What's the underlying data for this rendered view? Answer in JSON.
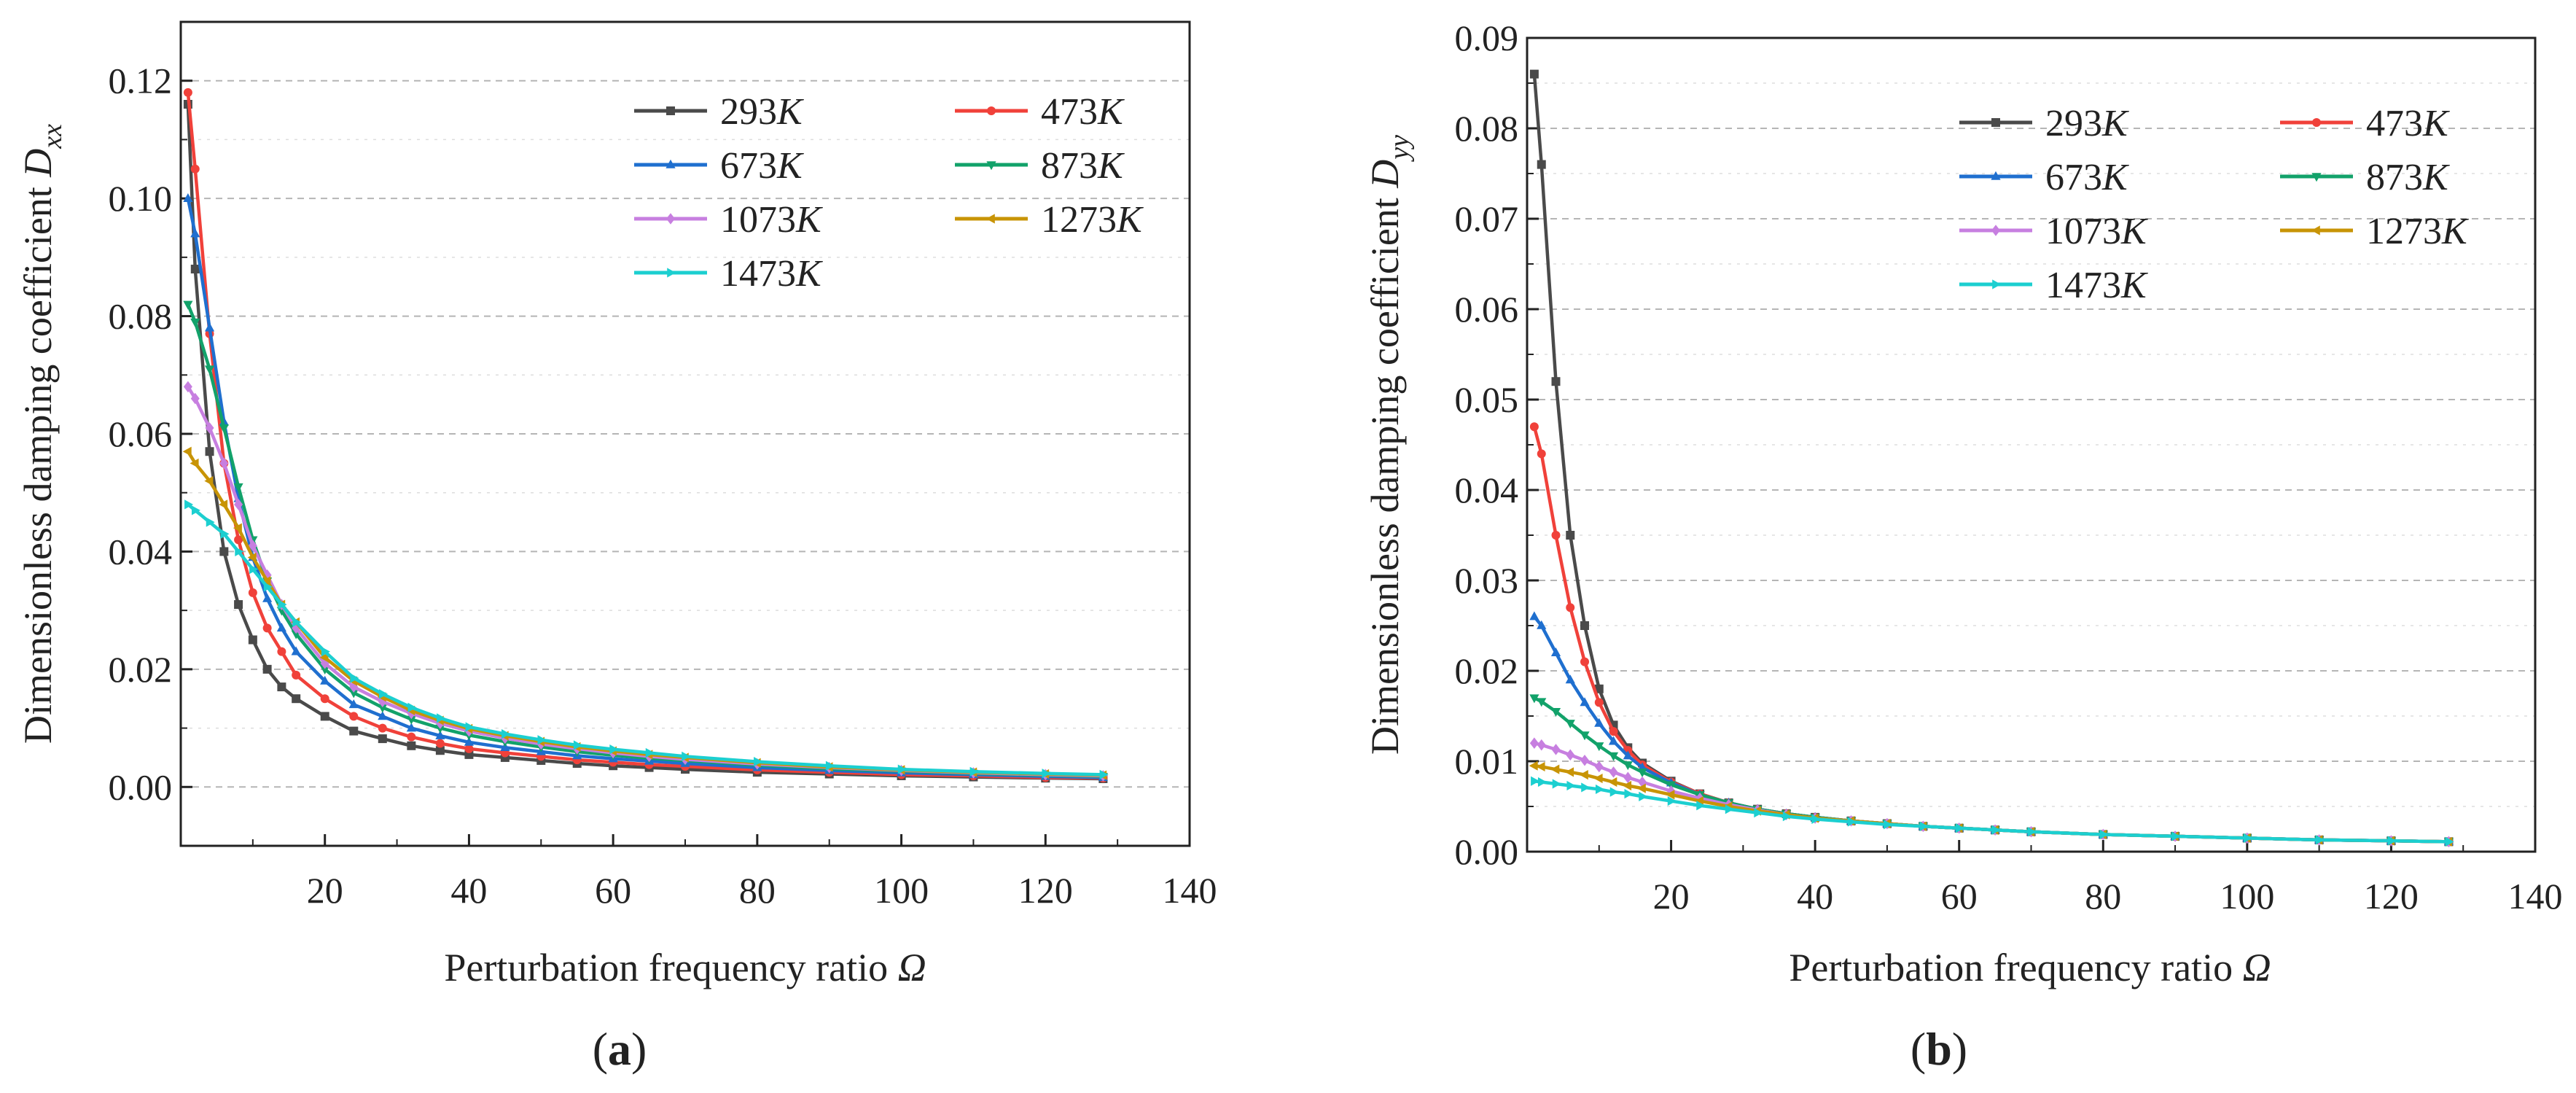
{
  "colors": {
    "293K": "#4a4a4a",
    "473K": "#f0413a",
    "673K": "#1f6fcf",
    "873K": "#12a26a",
    "1073K": "#c77fe0",
    "1273K": "#c89406",
    "1473K": "#1ccfd0",
    "grid": "#b5b5b5",
    "axis": "#222222"
  },
  "chart_data": [
    {
      "type": "line",
      "panel_label": "(a)",
      "panel_letter": "a",
      "xlabel": "Perturbation frequency ratio Ω",
      "ylabel": "Dimensionless damping coefficient D_xx",
      "ylabel_main": "Dimensionless damping coefficient ",
      "ylabel_sym": "D",
      "ylabel_sub": "xx",
      "xlim": [
        0,
        140
      ],
      "ylim": [
        -0.01,
        0.13
      ],
      "xticks": [
        "20",
        "40",
        "60",
        "80",
        "100",
        "120",
        "140"
      ],
      "yticks": [
        "0.00",
        "0.02",
        "0.04",
        "0.06",
        "0.08",
        "0.10",
        "0.12"
      ],
      "grid": "horizontal dashed",
      "legend_position": "top-right",
      "x": [
        1,
        2,
        4,
        6,
        8,
        10,
        12,
        14,
        16,
        20,
        24,
        28,
        32,
        36,
        40,
        45,
        50,
        55,
        60,
        65,
        70,
        80,
        90,
        100,
        110,
        120,
        128
      ],
      "series": [
        {
          "name": "293K",
          "values": [
            0.116,
            0.088,
            0.057,
            0.04,
            0.031,
            0.025,
            0.02,
            0.017,
            0.015,
            0.012,
            0.0095,
            0.0082,
            0.007,
            0.0062,
            0.0055,
            0.005,
            0.0045,
            0.004,
            0.0036,
            0.0033,
            0.003,
            0.0025,
            0.0022,
            0.0019,
            0.0017,
            0.0015,
            0.0014
          ]
        },
        {
          "name": "473K",
          "values": [
            0.118,
            0.105,
            0.077,
            0.055,
            0.042,
            0.033,
            0.027,
            0.023,
            0.019,
            0.015,
            0.012,
            0.01,
            0.0085,
            0.0074,
            0.0065,
            0.0058,
            0.0052,
            0.0046,
            0.0042,
            0.0038,
            0.0035,
            0.0029,
            0.0025,
            0.0021,
            0.0019,
            0.0016,
            0.0015
          ]
        },
        {
          "name": "673K",
          "values": [
            0.1,
            0.094,
            0.078,
            0.062,
            0.049,
            0.039,
            0.032,
            0.027,
            0.023,
            0.018,
            0.014,
            0.012,
            0.01,
            0.0087,
            0.0076,
            0.0067,
            0.006,
            0.0053,
            0.0048,
            0.0044,
            0.004,
            0.0033,
            0.0028,
            0.0024,
            0.0021,
            0.0018,
            0.0016
          ]
        },
        {
          "name": "873K",
          "values": [
            0.082,
            0.079,
            0.071,
            0.061,
            0.051,
            0.042,
            0.035,
            0.03,
            0.026,
            0.02,
            0.016,
            0.0135,
            0.0115,
            0.01,
            0.0088,
            0.0077,
            0.0068,
            0.006,
            0.0054,
            0.0049,
            0.0045,
            0.0037,
            0.0031,
            0.0027,
            0.0023,
            0.002,
            0.0018
          ]
        },
        {
          "name": "1073K",
          "values": [
            0.068,
            0.066,
            0.061,
            0.055,
            0.048,
            0.041,
            0.036,
            0.031,
            0.027,
            0.021,
            0.017,
            0.0145,
            0.0125,
            0.0108,
            0.0095,
            0.0083,
            0.0073,
            0.0065,
            0.0058,
            0.0052,
            0.0047,
            0.0039,
            0.0033,
            0.0028,
            0.0024,
            0.0021,
            0.0019
          ]
        },
        {
          "name": "1273K",
          "values": [
            0.057,
            0.055,
            0.052,
            0.048,
            0.044,
            0.039,
            0.035,
            0.031,
            0.028,
            0.022,
            0.018,
            0.0153,
            0.013,
            0.0113,
            0.0099,
            0.0087,
            0.0077,
            0.0068,
            0.0061,
            0.0055,
            0.005,
            0.0041,
            0.0034,
            0.0029,
            0.0025,
            0.0022,
            0.002
          ]
        },
        {
          "name": "1473K",
          "values": [
            0.048,
            0.047,
            0.045,
            0.043,
            0.04,
            0.037,
            0.034,
            0.031,
            0.028,
            0.023,
            0.0185,
            0.0158,
            0.0135,
            0.0117,
            0.0102,
            0.009,
            0.008,
            0.0071,
            0.0064,
            0.0058,
            0.0052,
            0.0043,
            0.0036,
            0.003,
            0.0026,
            0.0023,
            0.0021
          ]
        }
      ]
    },
    {
      "type": "line",
      "panel_label": "(b)",
      "panel_letter": "b",
      "xlabel": "Perturbation frequency ratio Ω",
      "ylabel": "Dimensionless damping coefficient D_yy",
      "ylabel_main": "Dimensionless damping coefficient ",
      "ylabel_sym": "D",
      "ylabel_sub": "yy",
      "xlim": [
        0,
        140
      ],
      "ylim": [
        0,
        0.09
      ],
      "xticks": [
        "20",
        "40",
        "60",
        "80",
        "100",
        "120",
        "140"
      ],
      "yticks": [
        "0.00",
        "0.01",
        "0.02",
        "0.03",
        "0.04",
        "0.05",
        "0.06",
        "0.07",
        "0.08",
        "0.09"
      ],
      "grid": "horizontal dashed",
      "legend_position": "top-right",
      "x": [
        1,
        2,
        4,
        6,
        8,
        10,
        12,
        14,
        16,
        20,
        24,
        28,
        32,
        36,
        40,
        45,
        50,
        55,
        60,
        65,
        70,
        80,
        90,
        100,
        110,
        120,
        128
      ],
      "series": [
        {
          "name": "293K",
          "values": [
            0.086,
            0.076,
            0.052,
            0.035,
            0.025,
            0.018,
            0.014,
            0.0115,
            0.0098,
            0.0078,
            0.0064,
            0.0054,
            0.0047,
            0.0042,
            0.0038,
            0.0034,
            0.0031,
            0.0028,
            0.0026,
            0.0024,
            0.0022,
            0.0019,
            0.0017,
            0.0015,
            0.0013,
            0.0012,
            0.0011
          ]
        },
        {
          "name": "473K",
          "values": [
            0.047,
            0.044,
            0.035,
            0.027,
            0.021,
            0.0165,
            0.0133,
            0.0112,
            0.0096,
            0.0077,
            0.0064,
            0.0054,
            0.0047,
            0.0042,
            0.0038,
            0.0034,
            0.0031,
            0.0028,
            0.0026,
            0.0024,
            0.0022,
            0.0019,
            0.0017,
            0.0015,
            0.0013,
            0.0012,
            0.0011
          ]
        },
        {
          "name": "673K",
          "values": [
            0.026,
            0.025,
            0.022,
            0.019,
            0.0165,
            0.0142,
            0.0122,
            0.0106,
            0.0093,
            0.0076,
            0.0063,
            0.0054,
            0.0047,
            0.0042,
            0.0038,
            0.0034,
            0.0031,
            0.0028,
            0.0026,
            0.0024,
            0.0022,
            0.0019,
            0.0017,
            0.0015,
            0.0013,
            0.0012,
            0.0011
          ]
        },
        {
          "name": "873K",
          "values": [
            0.017,
            0.0166,
            0.0155,
            0.0142,
            0.0129,
            0.0117,
            0.0106,
            0.0096,
            0.0088,
            0.0074,
            0.0063,
            0.0054,
            0.0047,
            0.0042,
            0.0038,
            0.0034,
            0.0031,
            0.0028,
            0.0026,
            0.0024,
            0.0022,
            0.0019,
            0.0017,
            0.0015,
            0.0013,
            0.0012,
            0.0011
          ]
        },
        {
          "name": "1073K",
          "values": [
            0.012,
            0.0118,
            0.0113,
            0.0107,
            0.0101,
            0.0094,
            0.0088,
            0.0082,
            0.0077,
            0.0067,
            0.0059,
            0.0052,
            0.0046,
            0.0041,
            0.0037,
            0.0034,
            0.0031,
            0.0028,
            0.0026,
            0.0024,
            0.0022,
            0.0019,
            0.0017,
            0.0015,
            0.0013,
            0.0012,
            0.0011
          ]
        },
        {
          "name": "1273K",
          "values": [
            0.0095,
            0.0094,
            0.0091,
            0.0088,
            0.0085,
            0.0081,
            0.0077,
            0.0073,
            0.007,
            0.0063,
            0.0056,
            0.005,
            0.0045,
            0.0041,
            0.0037,
            0.0034,
            0.0031,
            0.0028,
            0.0026,
            0.0024,
            0.0022,
            0.0019,
            0.0017,
            0.0015,
            0.0013,
            0.0012,
            0.0011
          ]
        },
        {
          "name": "1473K",
          "values": [
            0.0078,
            0.0077,
            0.0075,
            0.0073,
            0.0071,
            0.0069,
            0.0066,
            0.0064,
            0.0061,
            0.0056,
            0.0051,
            0.0047,
            0.0043,
            0.0039,
            0.0036,
            0.0033,
            0.003,
            0.0028,
            0.0026,
            0.0024,
            0.0022,
            0.0019,
            0.0017,
            0.0015,
            0.0013,
            0.0012,
            0.0011
          ]
        }
      ]
    }
  ]
}
